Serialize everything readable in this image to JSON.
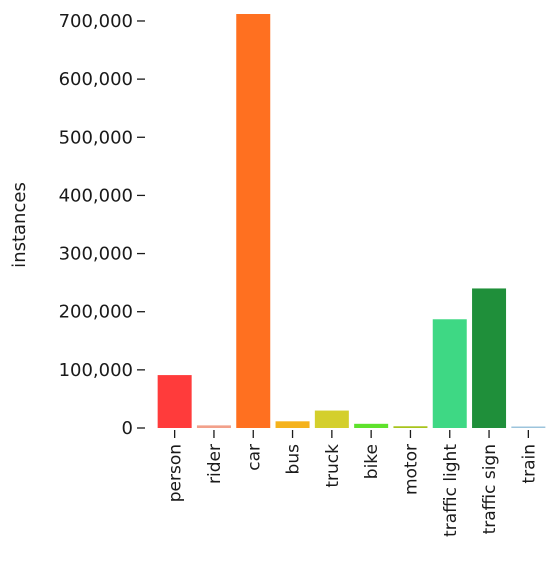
{
  "chart_data": {
    "type": "bar",
    "title": "",
    "xlabel": "",
    "ylabel": "instances",
    "ylim": [
      0,
      712000
    ],
    "yticks": [
      0,
      100000,
      200000,
      300000,
      400000,
      500000,
      600000,
      700000
    ],
    "ytick_labels": [
      "0",
      "100,000",
      "200,000",
      "300,000",
      "400,000",
      "500,000",
      "600,000",
      "700,000"
    ],
    "categories": [
      "person",
      "rider",
      "car",
      "bus",
      "truck",
      "bike",
      "motor",
      "traffic light",
      "traffic sign",
      "train"
    ],
    "values": [
      91000,
      4500,
      712000,
      11500,
      30000,
      7200,
      3000,
      187000,
      240000,
      140
    ],
    "colors": [
      "#ff3b3b",
      "#f2a08a",
      "#ff7020",
      "#f5b21c",
      "#d4cf2c",
      "#5ee22c",
      "#a8c41c",
      "#3ed884",
      "#1f8f3a",
      "#9cc4dc"
    ],
    "grid": false,
    "legend": "none"
  }
}
